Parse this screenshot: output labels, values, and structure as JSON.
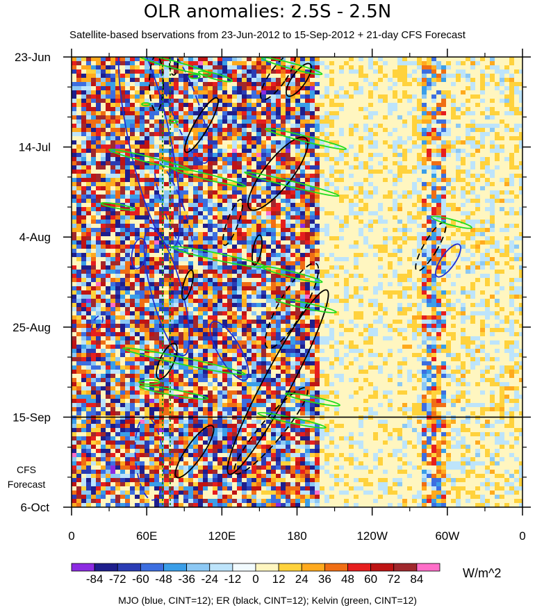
{
  "chart_data": {
    "type": "heatmap",
    "title": "OLR anomalies: 2.5S - 2.5N",
    "subtitle": "Satellite-based bservations from 23-Jun-2012 to 15-Sep-2012 + 21-day CFS Forecast",
    "x_ticks": [
      "0",
      "60E",
      "120E",
      "180",
      "120W",
      "60W",
      "0"
    ],
    "y_ticks": [
      "23-Jun",
      "14-Jul",
      "4-Aug",
      "25-Aug",
      "15-Sep",
      "6-Oct"
    ],
    "forecast_label": [
      "CFS",
      "Forecast"
    ],
    "colorbar": {
      "labels": [
        "-84",
        "-72",
        "-60",
        "-48",
        "-36",
        "-24",
        "-12",
        "0",
        "12",
        "24",
        "36",
        "48",
        "60",
        "72",
        "84"
      ],
      "colors": [
        "#8c2be2",
        "#1e1e8c",
        "#2a3cb4",
        "#3c6ee0",
        "#3a9ee8",
        "#8cc8f4",
        "#bde4fb",
        "#f2fbff",
        "#fff6c0",
        "#ffd23c",
        "#ffaa1e",
        "#f06e14",
        "#e61e1e",
        "#be1414",
        "#a0282d",
        "#ff6ec8"
      ],
      "units": "W/m^2"
    },
    "contours_note": "MJO (blue, CINT=12); ER (black, CINT=12); Kelvin (green, CINT=12)",
    "series_colors": {
      "mjo": "#1f2fd0",
      "er": "#000000",
      "kelvin": "#1fdc1f"
    },
    "grid": false
  }
}
